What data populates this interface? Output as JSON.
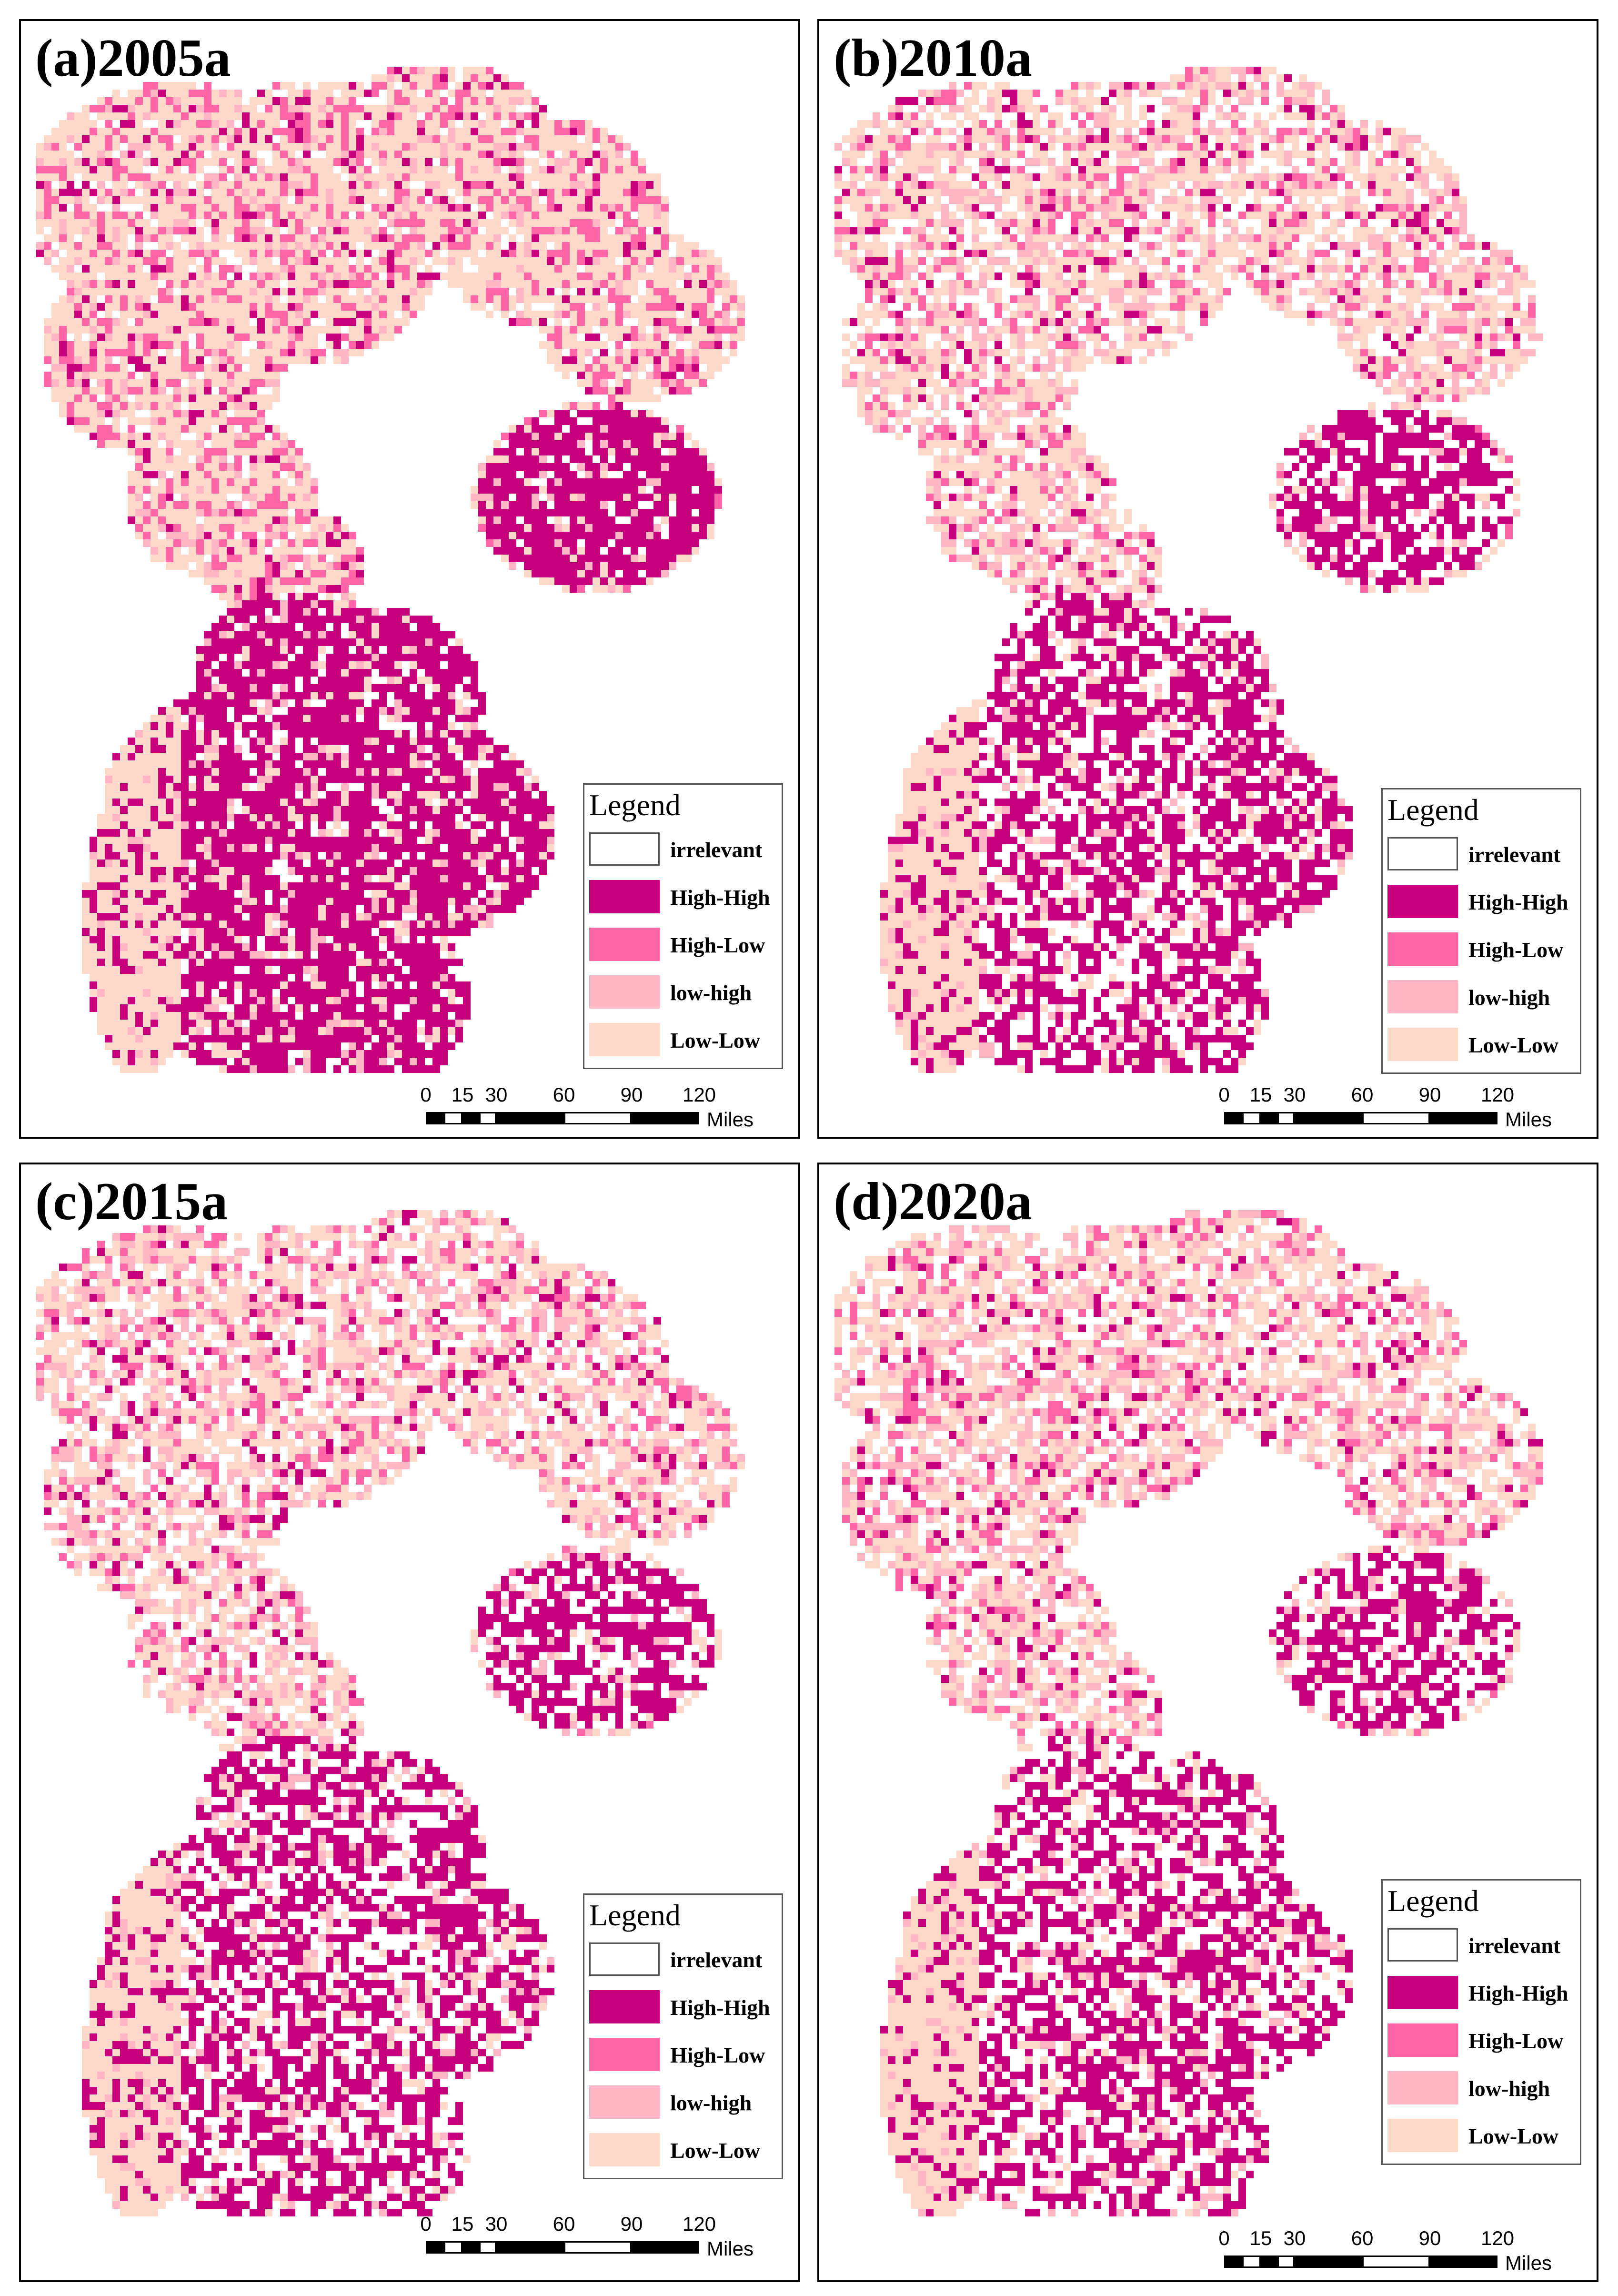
{
  "panels": [
    {
      "title": "(a)2005a",
      "variant": 0
    },
    {
      "title": "(b)2010a",
      "variant": 1
    },
    {
      "title": "(c)2015a",
      "variant": 2
    },
    {
      "title": "(d)2020a",
      "variant": 3
    }
  ],
  "legend": {
    "title": "Legend",
    "items": [
      {
        "label": "irrelevant",
        "color": "#ffffff"
      },
      {
        "label": "High-High",
        "color": "#c7007d"
      },
      {
        "label": "High-Low",
        "color": "#ff66a8"
      },
      {
        "label": "low-high",
        "color": "#ffb6c4"
      },
      {
        "label": "Low-Low",
        "color": "#fcd9c9"
      }
    ]
  },
  "scalebar": {
    "ticks": [
      "0",
      "15",
      "30",
      "60",
      "90",
      "120"
    ],
    "unit": "Miles"
  }
}
